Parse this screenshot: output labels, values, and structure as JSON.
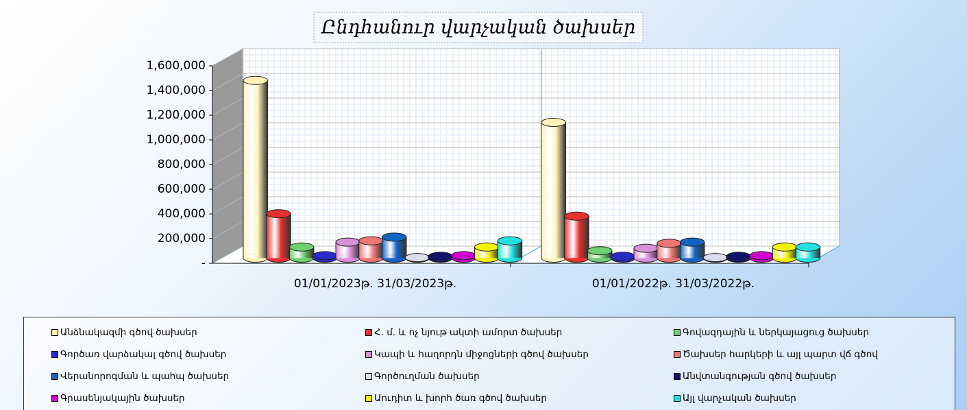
{
  "chart_data": {
    "type": "bar3d",
    "title": "Ընդհանուր վարչական ծախսեր",
    "categories": [
      "01/01/2023թ.  31/03/2023թ.",
      "01/01/2022թ.  31/03/2022թ."
    ],
    "ylim": [
      0,
      1600000
    ],
    "yticks": [
      {
        "value": 0,
        "label": "-"
      },
      {
        "value": 200000,
        "label": "200,000"
      },
      {
        "value": 400000,
        "label": "400,000"
      },
      {
        "value": 600000,
        "label": "600,000"
      },
      {
        "value": 800000,
        "label": "800,000"
      },
      {
        "value": 1000000,
        "label": "1,000,000"
      },
      {
        "value": 1200000,
        "label": "1,200,000"
      },
      {
        "value": 1400000,
        "label": "1,400,000"
      },
      {
        "value": 1600000,
        "label": "1,600,000"
      }
    ],
    "grid": true,
    "series": [
      {
        "name": "Անձնակազմի գծով ծախսեր",
        "color": "#fff3b8",
        "values": [
          1440000,
          1100000
        ]
      },
      {
        "name": "Հ. մ. և ոչ նյութ ակտի ամորտ ծախսեր",
        "color": "#e83030",
        "values": [
          360000,
          340000
        ]
      },
      {
        "name": "Գովազդային և ներկայացուց ծախսեր",
        "color": "#6ed06e",
        "values": [
          90000,
          60000
        ]
      },
      {
        "name": "Գործառ վարձակալ գծով ծախսեր",
        "color": "#2a2ac8",
        "values": [
          20000,
          15000
        ]
      },
      {
        "name": "Կապի և հաղորդն միջոցների գծով ծախսեր",
        "color": "#d890d8",
        "values": [
          130000,
          80000
        ]
      },
      {
        "name": "Ծախսեր հարկերի և այլ պարտ վճ գծով",
        "color": "#f07474",
        "values": [
          140000,
          120000
        ]
      },
      {
        "name": "Վերանորոգման և պահպ ծախսեր",
        "color": "#1464c4",
        "values": [
          170000,
          130000
        ]
      },
      {
        "name": "Գործուղման ծախսեր",
        "color": "#dcdcec",
        "values": [
          5000,
          5000
        ]
      },
      {
        "name": "Անվտանգության գծով ծախսեր",
        "color": "#121266",
        "values": [
          15000,
          15000
        ]
      },
      {
        "name": "Գրասենյակային ծախսեր",
        "color": "#d000d0",
        "values": [
          20000,
          20000
        ]
      },
      {
        "name": "Աուդիտ և խորհ ծառ գծով ծախսեր",
        "color": "#f2f200",
        "values": [
          90000,
          90000
        ]
      },
      {
        "name": "Այլ վարչական ծախսեր",
        "color": "#22e0e0",
        "values": [
          140000,
          90000
        ]
      }
    ]
  }
}
